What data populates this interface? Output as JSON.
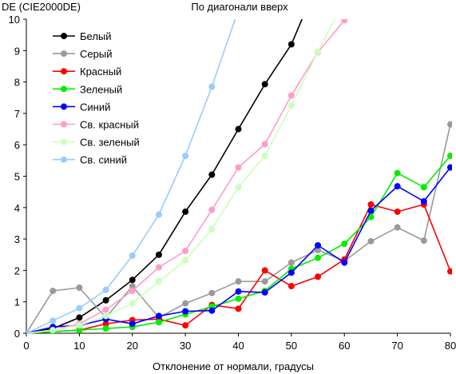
{
  "chart_data": {
    "type": "line",
    "title": "По диагонали вверх",
    "ylabel": "DE (CIE2000DE)",
    "xlabel": "Отклонение от нормали, градусы",
    "xlim": [
      0,
      80
    ],
    "ylim": [
      0,
      10
    ],
    "xticks": [
      "0",
      "10",
      "20",
      "30",
      "40",
      "50",
      "60",
      "70",
      "80"
    ],
    "yticks": [
      "0",
      "1",
      "2",
      "3",
      "4",
      "5",
      "6",
      "7",
      "8",
      "9",
      "10"
    ],
    "grid": false,
    "legend_position": "top-left",
    "x": [
      0,
      5,
      10,
      15,
      20,
      25,
      30,
      35,
      40,
      45,
      50,
      55,
      60,
      65,
      70,
      75,
      80
    ],
    "series": [
      {
        "name": "Белый",
        "color": "#000000",
        "values": [
          0,
          0.15,
          0.5,
          1.05,
          1.7,
          2.5,
          3.87,
          5.05,
          6.5,
          7.93,
          9.2,
          11.2,
          null,
          null,
          null,
          null,
          null
        ]
      },
      {
        "name": "Серый",
        "color": "#999999",
        "values": [
          0,
          1.35,
          1.45,
          0.5,
          1.5,
          0.5,
          0.95,
          1.28,
          1.65,
          1.65,
          2.25,
          2.65,
          2.3,
          2.93,
          3.37,
          2.95,
          6.65
        ]
      },
      {
        "name": "Красный",
        "color": "#ff0000",
        "values": [
          0,
          0.05,
          0.1,
          0.3,
          0.42,
          0.45,
          0.25,
          0.9,
          0.78,
          2.0,
          1.5,
          1.8,
          2.35,
          4.1,
          3.87,
          4.1,
          1.97
        ]
      },
      {
        "name": "Зеленый",
        "color": "#00ee00",
        "values": [
          0,
          0.05,
          0.1,
          0.15,
          0.2,
          0.35,
          0.6,
          0.85,
          1.1,
          1.35,
          2.05,
          2.4,
          2.85,
          3.7,
          5.1,
          4.65,
          5.65
        ]
      },
      {
        "name": "Синий",
        "color": "#0000ff",
        "values": [
          0,
          0.2,
          0.25,
          0.45,
          0.3,
          0.55,
          0.7,
          0.72,
          1.33,
          1.3,
          1.93,
          2.8,
          2.25,
          3.9,
          4.68,
          4.2,
          5.28
        ]
      },
      {
        "name": "Св. красный",
        "color": "#ff9cc9",
        "values": [
          0,
          0.1,
          0.3,
          0.75,
          1.35,
          2.1,
          2.62,
          3.93,
          5.28,
          6.02,
          7.57,
          8.95,
          9.97,
          null,
          null,
          null,
          null
        ]
      },
      {
        "name": "Св. зеленый",
        "color": "#ccffbb",
        "values": [
          0,
          0.1,
          0.25,
          0.55,
          0.95,
          1.65,
          2.32,
          3.32,
          4.65,
          5.65,
          7.25,
          8.97,
          10.6,
          null,
          null,
          null,
          null
        ]
      },
      {
        "name": "Св. синий",
        "color": "#99ccff",
        "values": [
          0,
          0.4,
          0.8,
          1.38,
          2.47,
          3.78,
          5.65,
          7.85,
          10.3,
          null,
          null,
          null,
          null,
          null,
          null,
          null,
          null
        ]
      }
    ]
  }
}
